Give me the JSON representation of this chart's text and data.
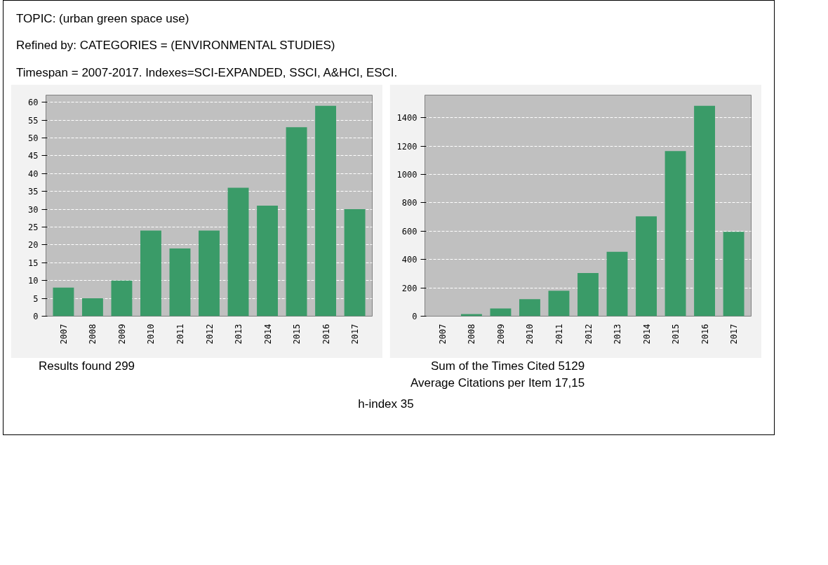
{
  "chart_data": [
    {
      "type": "bar",
      "title": "TOPIC: (urban green space use)",
      "subtitle": "Refined by: CATEGORIES = (ENVIRONMENTAL STUDIES)\nTimespan = 2007-2017. Indexes=SCI-EXPANDED, SSCI, A&HCI, ESCI.",
      "categories": [
        "2007",
        "2008",
        "2009",
        "2010",
        "2011",
        "2012",
        "2013",
        "2014",
        "2015",
        "2016",
        "2017"
      ],
      "values": [
        8,
        5,
        10,
        24,
        19,
        24,
        36,
        31,
        53,
        59,
        30
      ],
      "color": "#3a9b68",
      "ylim": [
        0,
        62
      ],
      "yticks": [
        0,
        5,
        10,
        15,
        20,
        25,
        30,
        35,
        40,
        45,
        50,
        55,
        60
      ],
      "grid": "y",
      "annotations": [
        "Results found 299"
      ]
    },
    {
      "type": "bar",
      "categories": [
        "2007",
        "2008",
        "2009",
        "2010",
        "2011",
        "2012",
        "2013",
        "2014",
        "2015",
        "2016",
        "2017"
      ],
      "values": [
        0,
        15,
        55,
        120,
        180,
        305,
        455,
        705,
        1165,
        1485,
        595
      ],
      "color": "#3a9b68",
      "ylim": [
        0,
        1560
      ],
      "yticks": [
        0,
        200,
        400,
        600,
        800,
        1000,
        1200,
        1400
      ],
      "grid": "y",
      "annotations": [
        "Sum of the Times Cited 5129",
        "Average Citations per Item 17,15",
        "h-index 35"
      ]
    }
  ]
}
